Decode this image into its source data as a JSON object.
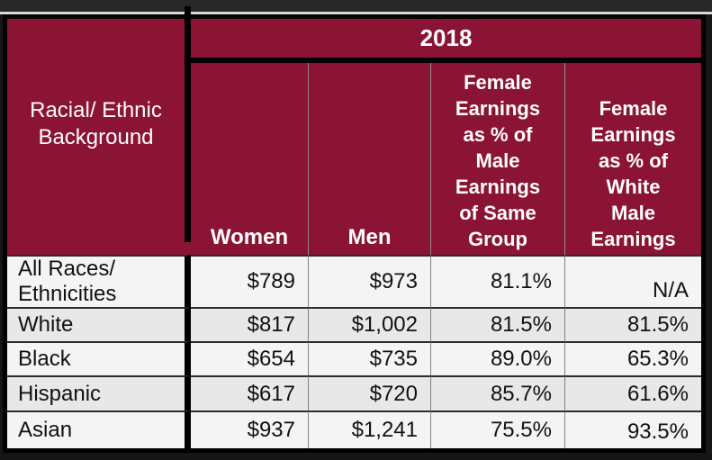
{
  "colors": {
    "header_maroon": "#8B1333",
    "outer_border": "#000000",
    "top_strip": "#282828",
    "top_light_line": "#d8d8d8",
    "bottom_strip": "#161616",
    "row_light": "#f4f4f4",
    "row_dark": "#e8e8e8",
    "header_text": "#ffffff",
    "data_text": "#111111",
    "grid_line_gray": "#828282",
    "row_divider": "#2b2b2b"
  },
  "header": {
    "year": "2018",
    "corner": "Racial/ Ethnic\nBackground",
    "col_women": "Women",
    "col_men": "Men",
    "col_pct_same": "Female\nEarnings\nas % of\nMale\nEarnings\nof Same\nGroup",
    "col_pct_white": "Female\nEarnings\nas % of\nWhite\nMale\nEarnings"
  },
  "rows": [
    {
      "label": "All Races/\nEthnicities",
      "women": "$789",
      "men": "$973",
      "pct_same_group": "81.1%",
      "pct_white_male": "N/A"
    },
    {
      "label": "White",
      "women": "$817",
      "men": "$1,002",
      "pct_same_group": "81.5%",
      "pct_white_male": "81.5%"
    },
    {
      "label": "Black",
      "women": "$654",
      "men": "$735",
      "pct_same_group": "89.0%",
      "pct_white_male": "65.3%"
    },
    {
      "label": "Hispanic",
      "women": "$617",
      "men": "$720",
      "pct_same_group": "85.7%",
      "pct_white_male": "61.6%"
    },
    {
      "label": "Asian",
      "women": "$937",
      "men": "$1,241",
      "pct_same_group": "75.5%",
      "pct_white_male": "93.5%"
    }
  ],
  "chart_data": {
    "type": "table",
    "title": "2018",
    "columns": [
      "Racial/ Ethnic Background",
      "Women",
      "Men",
      "Female Earnings as % of Male Earnings of Same Group",
      "Female Earnings as % of White Male Earnings"
    ],
    "rows": [
      [
        "All Races/ Ethnicities",
        "$789",
        "$973",
        "81.1%",
        "N/A"
      ],
      [
        "White",
        "$817",
        "$1,002",
        "81.5%",
        "81.5%"
      ],
      [
        "Black",
        "$654",
        "$735",
        "89.0%",
        "65.3%"
      ],
      [
        "Hispanic",
        "$617",
        "$720",
        "85.7%",
        "61.6%"
      ],
      [
        "Asian",
        "$937",
        "$1,241",
        "75.5%",
        "93.5%"
      ]
    ]
  }
}
